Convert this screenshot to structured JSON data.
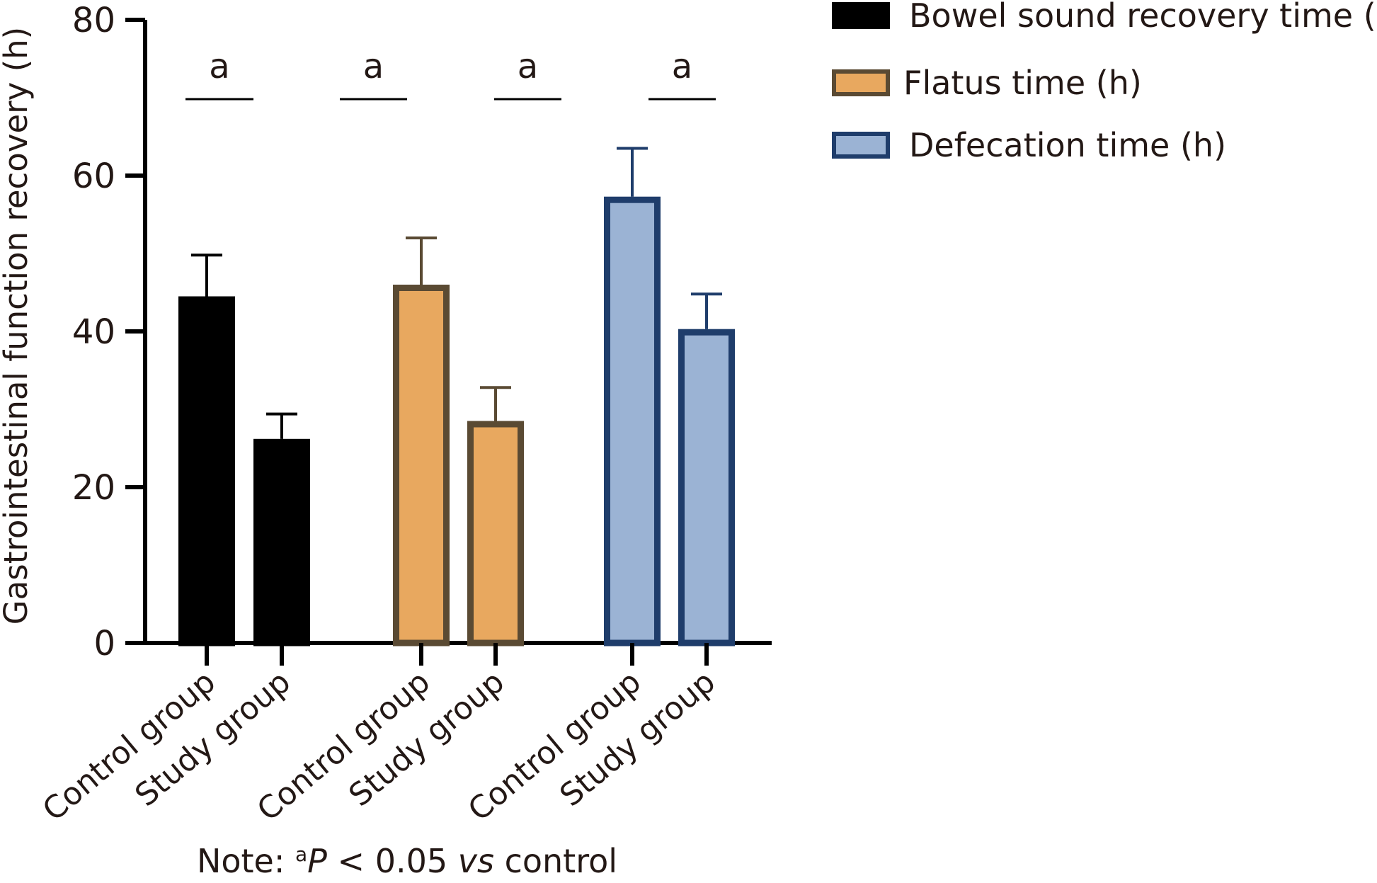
{
  "chart_data": {
    "type": "bar",
    "ylabel": "Gastrointestinal function recovery (h)",
    "ylim": [
      0,
      80
    ],
    "yticks": [
      0,
      20,
      40,
      60,
      80
    ],
    "grid": false,
    "legend_position": "top-right",
    "groups": [
      {
        "series": "Bowel sound recovery time (h)",
        "color": "#000000",
        "edge": "#000000",
        "bars": [
          {
            "category": "Control group",
            "value": 44.5,
            "error": 5.3
          },
          {
            "category": "Study group",
            "value": 26.2,
            "error": 3.2
          }
        ],
        "significance": "a"
      },
      {
        "series": "Flatus time (h)",
        "color": "#E8A85F",
        "edge": "#5A4A33",
        "bars": [
          {
            "category": "Control group",
            "value": 46.0,
            "error": 6.0
          },
          {
            "category": "Study group",
            "value": 28.5,
            "error": 4.3
          }
        ],
        "significance": "a"
      },
      {
        "series": "Defecation time (h)",
        "color": "#9BB3D4",
        "edge": "#1F3D6B",
        "bars": [
          {
            "category": "Control group",
            "value": 57.3,
            "error": 6.2
          },
          {
            "category": "Study group",
            "value": 40.3,
            "error": 4.5
          }
        ],
        "significance": "a"
      }
    ],
    "significance_marks": [
      "a",
      "a",
      "a",
      "a"
    ],
    "legend": [
      {
        "label": "Bowel sound recovery time (h)",
        "color": "#000000",
        "edge": "#000000"
      },
      {
        "label": "Flatus time (h)",
        "color": "#E8A85F",
        "edge": "#5A4A33"
      },
      {
        "label": "Defecation time (h)",
        "color": "#9BB3D4",
        "edge": "#1F3D6B"
      }
    ],
    "note": {
      "prefix": "Note: ",
      "superscript": "a",
      "italic_p": "P",
      "middle": " < 0.05 ",
      "italic_vs": "vs",
      "suffix": " control"
    }
  }
}
